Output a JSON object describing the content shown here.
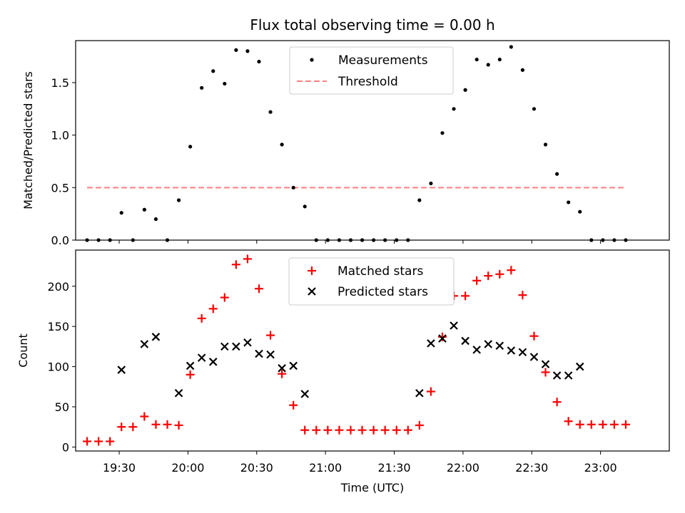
{
  "chart_data": [
    {
      "type": "scatter",
      "title": "Flux total observing time = 0.00 h",
      "xlabel": "",
      "ylabel": "Matched/Predicted stars",
      "ylim": [
        0,
        1.9
      ],
      "xlim": [
        "19:11",
        "23:30"
      ],
      "yticks": [
        "0.0",
        "0.5",
        "1.0",
        "1.5"
      ],
      "legend_position": "top-center",
      "series": [
        {
          "name": "Measurements",
          "color": "#000000",
          "marker": "dot",
          "points": [
            [
              "19:16",
              0.0
            ],
            [
              "19:21",
              0.0
            ],
            [
              "19:26",
              0.0
            ],
            [
              "19:31",
              0.26
            ],
            [
              "19:36",
              0.0
            ],
            [
              "19:41",
              0.29
            ],
            [
              "19:46",
              0.2
            ],
            [
              "19:51",
              0.0
            ],
            [
              "19:56",
              0.38
            ],
            [
              "20:01",
              0.89
            ],
            [
              "20:06",
              1.45
            ],
            [
              "20:11",
              1.61
            ],
            [
              "20:16",
              1.49
            ],
            [
              "20:21",
              1.81
            ],
            [
              "20:26",
              1.8
            ],
            [
              "20:31",
              1.7
            ],
            [
              "20:36",
              1.22
            ],
            [
              "20:41",
              0.91
            ],
            [
              "20:46",
              0.5
            ],
            [
              "20:51",
              0.32
            ],
            [
              "20:56",
              0.0
            ],
            [
              "21:01",
              0.0
            ],
            [
              "21:06",
              0.0
            ],
            [
              "21:11",
              0.0
            ],
            [
              "21:16",
              0.0
            ],
            [
              "21:21",
              0.0
            ],
            [
              "21:26",
              0.0
            ],
            [
              "21:31",
              0.0
            ],
            [
              "21:36",
              0.0
            ],
            [
              "21:41",
              0.38
            ],
            [
              "21:46",
              0.54
            ],
            [
              "21:51",
              1.02
            ],
            [
              "21:56",
              1.25
            ],
            [
              "22:01",
              1.43
            ],
            [
              "22:06",
              1.72
            ],
            [
              "22:11",
              1.67
            ],
            [
              "22:16",
              1.72
            ],
            [
              "22:21",
              1.84
            ],
            [
              "22:26",
              1.62
            ],
            [
              "22:31",
              1.25
            ],
            [
              "22:36",
              0.91
            ],
            [
              "22:41",
              0.63
            ],
            [
              "22:46",
              0.36
            ],
            [
              "22:51",
              0.27
            ],
            [
              "22:56",
              0.0
            ],
            [
              "23:01",
              0.0
            ],
            [
              "23:06",
              0.0
            ],
            [
              "23:11",
              0.0
            ]
          ]
        },
        {
          "name": "Threshold",
          "color": "#ff7f7f",
          "style": "dashed",
          "points": [
            [
              "19:16",
              0.5
            ],
            [
              "23:11",
              0.5
            ]
          ]
        }
      ]
    },
    {
      "type": "scatter",
      "title": "",
      "xlabel": "Time (UTC)",
      "ylabel": "Count",
      "ylim": [
        -5,
        245
      ],
      "xlim": [
        "19:11",
        "23:30"
      ],
      "yticks": [
        "0",
        "50",
        "100",
        "150",
        "200"
      ],
      "xticks": [
        "19:30",
        "20:00",
        "20:30",
        "21:00",
        "21:30",
        "22:00",
        "22:30",
        "23:00"
      ],
      "legend_position": "top-center",
      "series": [
        {
          "name": "Matched stars",
          "color": "#ff0000",
          "marker": "plus",
          "points": [
            [
              "19:16",
              7
            ],
            [
              "19:21",
              7
            ],
            [
              "19:26",
              7
            ],
            [
              "19:31",
              25
            ],
            [
              "19:36",
              25
            ],
            [
              "19:41",
              38
            ],
            [
              "19:46",
              28
            ],
            [
              "19:51",
              28
            ],
            [
              "19:56",
              27
            ],
            [
              "20:01",
              90
            ],
            [
              "20:06",
              160
            ],
            [
              "20:11",
              172
            ],
            [
              "20:16",
              186
            ],
            [
              "20:21",
              227
            ],
            [
              "20:26",
              234
            ],
            [
              "20:31",
              197
            ],
            [
              "20:36",
              139
            ],
            [
              "20:41",
              91
            ],
            [
              "20:46",
              52
            ],
            [
              "20:51",
              21
            ],
            [
              "20:56",
              21
            ],
            [
              "21:01",
              21
            ],
            [
              "21:06",
              21
            ],
            [
              "21:11",
              21
            ],
            [
              "21:16",
              21
            ],
            [
              "21:21",
              21
            ],
            [
              "21:26",
              21
            ],
            [
              "21:31",
              21
            ],
            [
              "21:36",
              21
            ],
            [
              "21:41",
              27
            ],
            [
              "21:46",
              69
            ],
            [
              "21:51",
              137
            ],
            [
              "21:56",
              188
            ],
            [
              "22:01",
              188
            ],
            [
              "22:06",
              207
            ],
            [
              "22:11",
              213
            ],
            [
              "22:16",
              215
            ],
            [
              "22:21",
              220
            ],
            [
              "22:26",
              189
            ],
            [
              "22:31",
              138
            ],
            [
              "22:36",
              93
            ],
            [
              "22:41",
              56
            ],
            [
              "22:46",
              32
            ],
            [
              "22:51",
              28
            ],
            [
              "22:56",
              28
            ],
            [
              "23:01",
              28
            ],
            [
              "23:06",
              28
            ],
            [
              "23:11",
              28
            ]
          ]
        },
        {
          "name": "Predicted stars",
          "color": "#000000",
          "marker": "x",
          "points": [
            [
              "19:31",
              96
            ],
            [
              "19:41",
              128
            ],
            [
              "19:46",
              137
            ],
            [
              "19:56",
              67
            ],
            [
              "20:01",
              101
            ],
            [
              "20:06",
              111
            ],
            [
              "20:11",
              106
            ],
            [
              "20:16",
              125
            ],
            [
              "20:21",
              125
            ],
            [
              "20:26",
              130
            ],
            [
              "20:31",
              116
            ],
            [
              "20:36",
              115
            ],
            [
              "20:41",
              98
            ],
            [
              "20:46",
              101
            ],
            [
              "20:51",
              66
            ],
            [
              "21:41",
              67
            ],
            [
              "21:46",
              129
            ],
            [
              "21:51",
              135
            ],
            [
              "21:56",
              151
            ],
            [
              "22:01",
              132
            ],
            [
              "22:06",
              121
            ],
            [
              "22:11",
              128
            ],
            [
              "22:16",
              126
            ],
            [
              "22:21",
              120
            ],
            [
              "22:26",
              118
            ],
            [
              "22:31",
              112
            ],
            [
              "22:36",
              103
            ],
            [
              "22:41",
              89
            ],
            [
              "22:46",
              89
            ],
            [
              "22:51",
              100
            ]
          ]
        }
      ]
    }
  ]
}
